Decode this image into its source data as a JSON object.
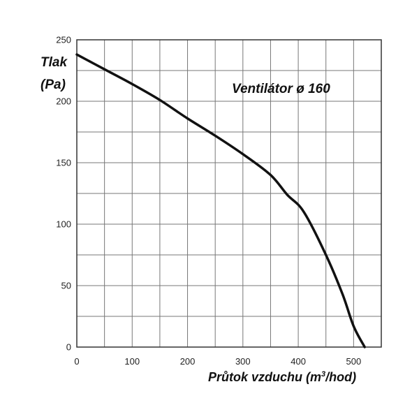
{
  "chart_data": {
    "type": "line",
    "title": "Ventilátor ø 160",
    "ylabel_line1": "Tlak",
    "ylabel_line2": "(Pa)",
    "xlabel_main": "Průtok vzduchu (m",
    "xlabel_sup": "3",
    "xlabel_end": "/hod)",
    "xlim": [
      0,
      550
    ],
    "ylim": [
      0,
      250
    ],
    "x_ticks": [
      0,
      100,
      200,
      300,
      400,
      500
    ],
    "y_ticks": [
      0,
      50,
      100,
      150,
      200,
      250
    ],
    "x_grid_step": 50,
    "y_grid_step": 25,
    "grid": true,
    "series": [
      {
        "x": [
          0,
          50,
          100,
          150,
          200,
          250,
          300,
          350,
          380,
          410,
          450,
          480,
          500,
          520
        ],
        "y": [
          238,
          226,
          214,
          201,
          186,
          172,
          157,
          140,
          124,
          110,
          75,
          43,
          17,
          0
        ]
      }
    ]
  }
}
